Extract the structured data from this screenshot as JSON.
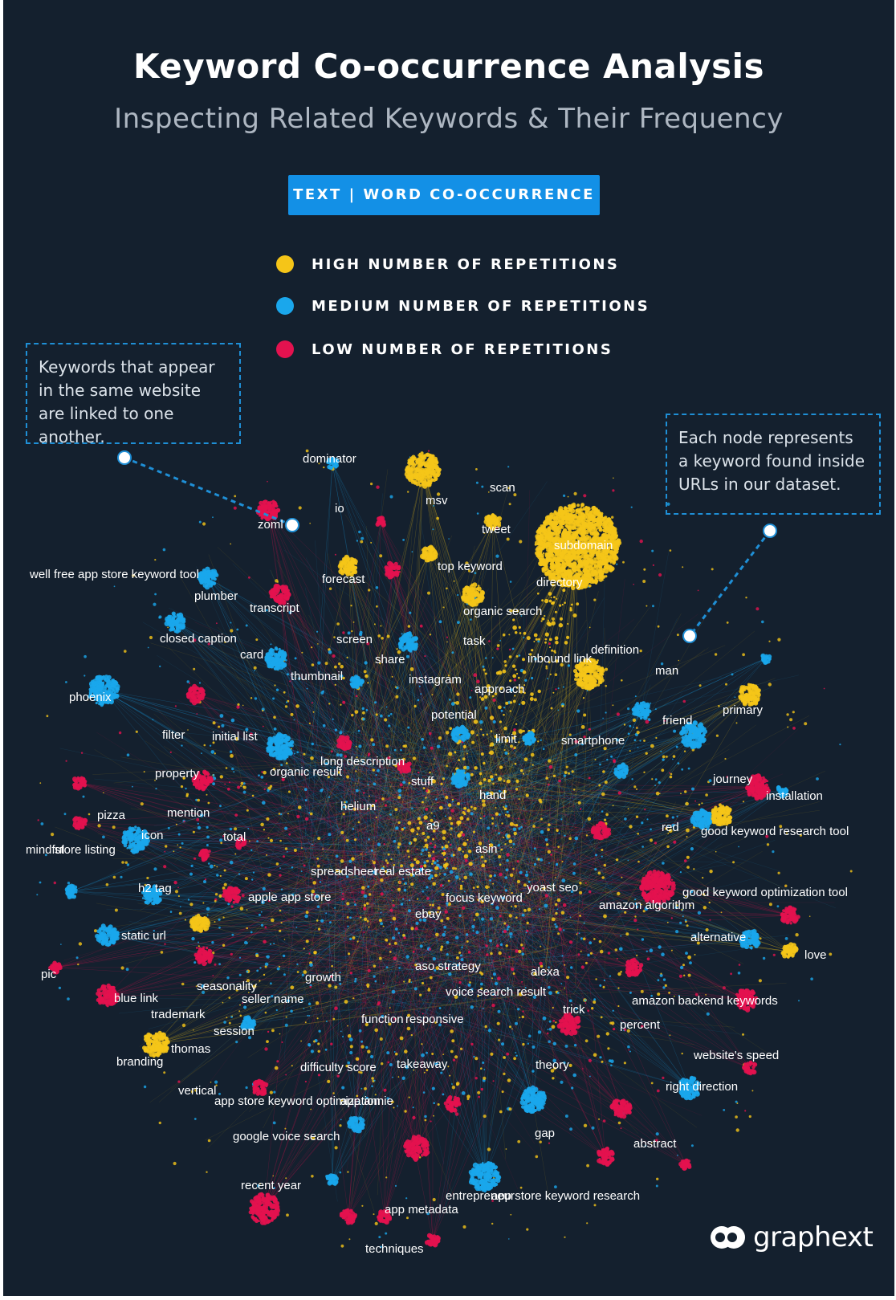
{
  "header": {
    "title": "Keyword Co-occurrence Analysis",
    "subtitle": "Inspecting Related Keywords & Their Frequency",
    "badge": "TEXT | WORD CO-OCCURRENCE"
  },
  "colors": {
    "high": "#f5c518",
    "medium": "#1aa7ec",
    "low": "#e3124f",
    "background": "#14202e",
    "accent": "#1390e6"
  },
  "legend": [
    {
      "label": "HIGH NUMBER OF REPETITIONS",
      "level": "high"
    },
    {
      "label": "MEDIUM NUMBER OF REPETITIONS",
      "level": "medium"
    },
    {
      "label": "LOW NUMBER OF REPETITIONS",
      "level": "low"
    }
  ],
  "notes": {
    "left": "Keywords that appear in the same website are linked to one another.",
    "right": "Each node represents a keyword found inside URLs in our dataset."
  },
  "keywords": [
    "dominator",
    "scan",
    "msv",
    "io",
    "zoml",
    "tweet",
    "subdomain",
    "top keyword",
    "forecast",
    "well free app store keyword tool",
    "plumber",
    "transcript",
    "directory",
    "organic search",
    "closed caption",
    "screen",
    "task",
    "card",
    "share",
    "inbound link",
    "definition",
    "man",
    "thumbnail",
    "instagram",
    "approach",
    "phoenix",
    "primary",
    "potential",
    "friend",
    "filter",
    "initial list",
    "limit",
    "smartphone",
    "long description",
    "organic result",
    "property",
    "stuff",
    "journey",
    "hand",
    "installation",
    "helium",
    "pizza",
    "mention",
    "a9",
    "red",
    "good keyword research tool",
    "icon",
    "total",
    "mindful",
    "store listing",
    "asin",
    "spreadsheet",
    "real estate",
    "h2 tag",
    "yoast seo",
    "good keyword optimization tool",
    "apple app store",
    "focus keyword",
    "amazon algorithm",
    "ebay",
    "static url",
    "alternative",
    "love",
    "aso strategy",
    "pic",
    "alexa",
    "growth",
    "seasonality",
    "voice search result",
    "blue link",
    "seller name",
    "amazon backend keywords",
    "trick",
    "trademark",
    "function",
    "responsive",
    "percent",
    "session",
    "thomas",
    "website's speed",
    "branding",
    "difficulty score",
    "takeaway",
    "theory",
    "vertical",
    "right direction",
    "app store keyword optimization",
    "app annie",
    "google voice search",
    "gap",
    "abstract",
    "recent year",
    "entrepreneur",
    "app store keyword research",
    "app metadata",
    "techniques"
  ],
  "logo": {
    "text": "graphext"
  }
}
